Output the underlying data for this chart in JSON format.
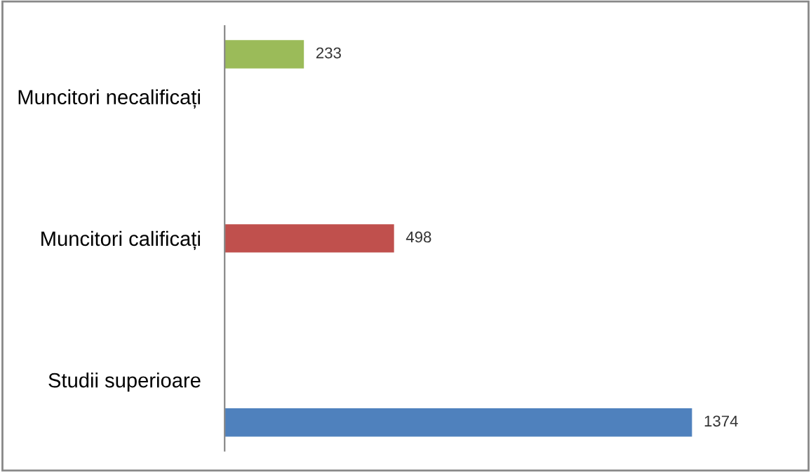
{
  "chart_data": {
    "type": "bar",
    "orientation": "horizontal",
    "categories": [
      "Muncitori necalificați",
      "Muncitori calificați",
      "Studii superioare"
    ],
    "series": [
      {
        "color": "#4f81bd",
        "values": [
          null,
          null,
          1374
        ]
      },
      {
        "color": "#c0504d",
        "values": [
          null,
          498,
          null
        ]
      },
      {
        "color": "#9bbb59",
        "values": [
          233,
          null,
          null
        ]
      }
    ],
    "data_labels": true,
    "grid": false,
    "legend": false
  }
}
